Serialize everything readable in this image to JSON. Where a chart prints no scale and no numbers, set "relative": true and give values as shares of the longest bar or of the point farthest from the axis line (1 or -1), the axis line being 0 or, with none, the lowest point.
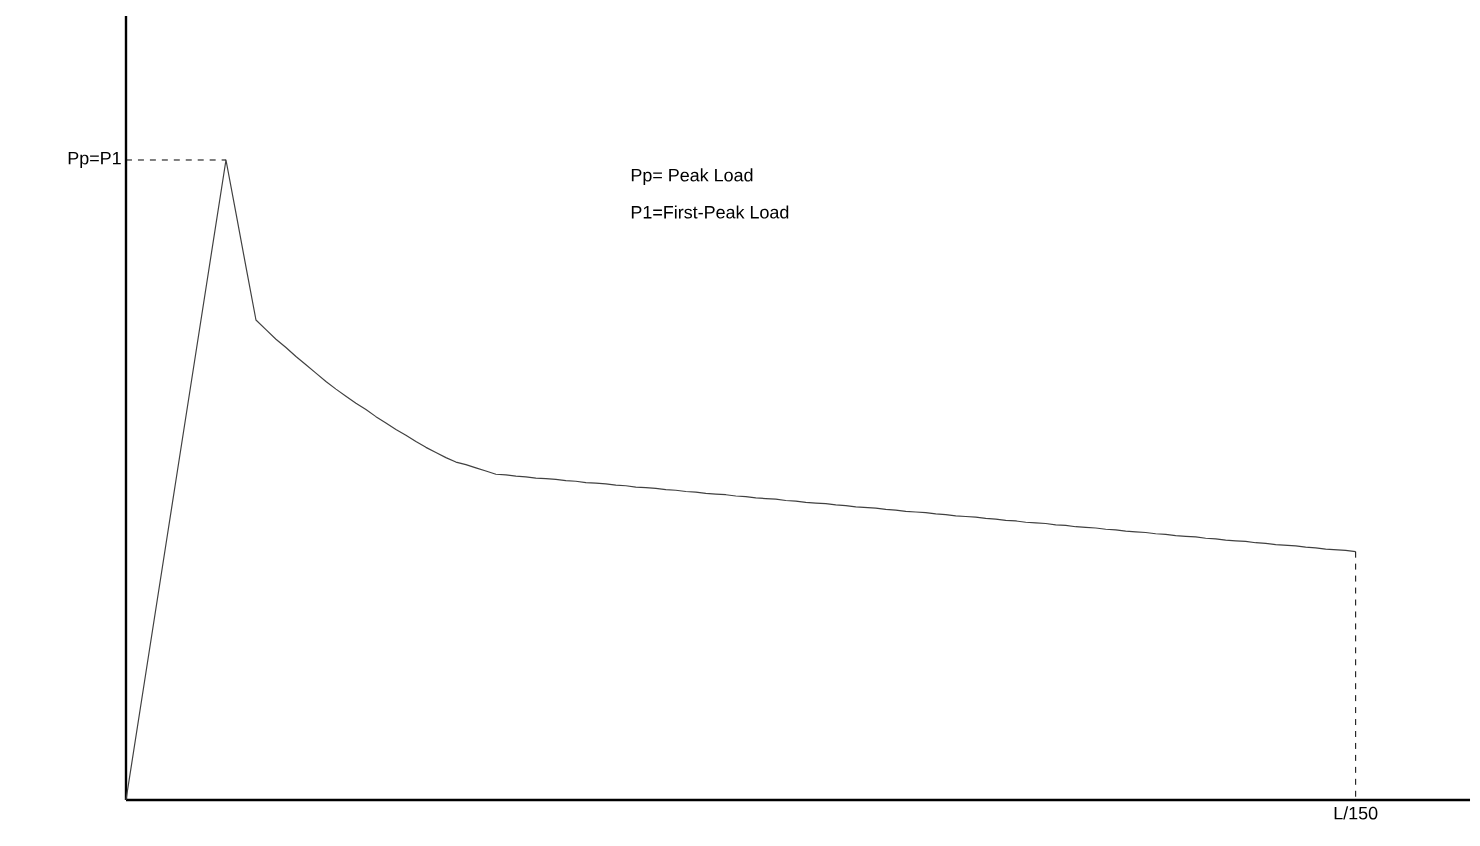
{
  "chart_data": {
    "type": "line",
    "relative": true,
    "categories": [
      null,
      null,
      null,
      null,
      null,
      null,
      null,
      null,
      null,
      null,
      null,
      null,
      null,
      null,
      null,
      null,
      null,
      null,
      null,
      null,
      null,
      null,
      null,
      null,
      null,
      null,
      null,
      null,
      null,
      null,
      null,
      null,
      null,
      null,
      null,
      null,
      null,
      null,
      null,
      null,
      null,
      null,
      null,
      null,
      null,
      null,
      null,
      null,
      null,
      null,
      null,
      null,
      null,
      null,
      null,
      null,
      null,
      null,
      null,
      null,
      null,
      null,
      null,
      null,
      null,
      null,
      null,
      null,
      null,
      null,
      null,
      null,
      null,
      null,
      null,
      null,
      null,
      null,
      null,
      null,
      null,
      null,
      null,
      null,
      null,
      null,
      null,
      null,
      null,
      null,
      null,
      null,
      null,
      null,
      null,
      null,
      null,
      null,
      null,
      null,
      null,
      null,
      null,
      null,
      null,
      null,
      null,
      null,
      null,
      null,
      null,
      null,
      null,
      null,
      null,
      null,
      null,
      null,
      null,
      null,
      null,
      null,
      null,
      null
    ],
    "values": [
      0,
      0.1,
      0.2,
      0.3,
      0.4,
      0.5,
      0.6,
      0.7,
      0.8,
      0.9,
      1,
      0.917,
      0.833,
      0.75,
      0.735,
      0.72,
      0.707,
      0.693,
      0.68,
      0.667,
      0.654,
      0.642,
      0.631,
      0.62,
      0.61,
      0.599,
      0.589,
      0.579,
      0.57,
      0.56,
      0.551,
      0.543,
      0.535,
      0.528,
      0.524,
      0.519,
      0.514,
      0.509,
      0.508,
      0.506,
      0.505,
      0.503,
      0.502,
      0.501,
      0.499,
      0.498,
      0.496,
      0.495,
      0.494,
      0.492,
      0.491,
      0.489,
      0.488,
      0.487,
      0.485,
      0.484,
      0.482,
      0.481,
      0.479,
      0.478,
      0.477,
      0.475,
      0.474,
      0.472,
      0.471,
      0.47,
      0.468,
      0.467,
      0.465,
      0.464,
      0.463,
      0.461,
      0.46,
      0.458,
      0.457,
      0.456,
      0.454,
      0.453,
      0.451,
      0.45,
      0.449,
      0.447,
      0.446,
      0.444,
      0.443,
      0.442,
      0.44,
      0.439,
      0.437,
      0.436,
      0.434,
      0.433,
      0.432,
      0.43,
      0.429,
      0.427,
      0.426,
      0.425,
      0.423,
      0.422,
      0.42,
      0.419,
      0.418,
      0.416,
      0.415,
      0.413,
      0.412,
      0.411,
      0.409,
      0.408,
      0.406,
      0.405,
      0.404,
      0.402,
      0.401,
      0.399,
      0.398,
      0.397,
      0.395,
      0.394,
      0.392,
      0.391,
      0.39,
      0.388
    ],
    "color": "#404040",
    "annotations": [
      "Pp=P1",
      "L/150",
      "Pp= Peak Load",
      "P1=First-Peak Load"
    ],
    "marker": "none",
    "line_style": "solid"
  }
}
